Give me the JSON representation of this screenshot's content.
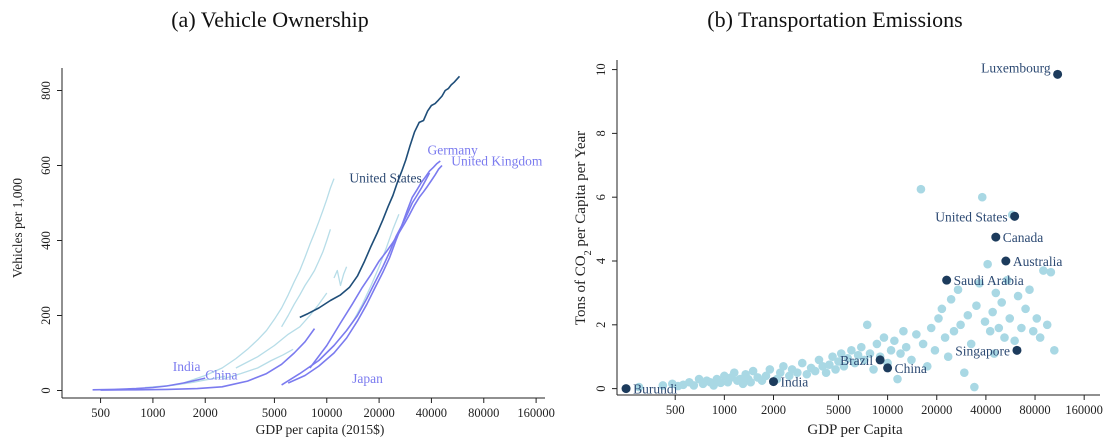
{
  "colors": {
    "us": "#1f4e79",
    "highlight": "#7b7bef",
    "other": "#b7dde8",
    "point": "#a9d8e4",
    "marked": "#1c3b5c",
    "label_blue": "#2d4a73",
    "label_purple": "#7b7bef"
  },
  "chart_data": [
    {
      "type": "line",
      "title": "(a) Vehicle Ownership",
      "xlabel": "GDP per capita (2015$)",
      "ylabel": "Vehicles per 1,000",
      "xscale": "log",
      "xlim": [
        300,
        180000
      ],
      "ylim": [
        -20,
        860
      ],
      "xticks": [
        500,
        1000,
        2000,
        5000,
        10000,
        20000,
        40000,
        80000,
        160000
      ],
      "xticklabels": [
        "500",
        "1000",
        "2000",
        "5000",
        "10000",
        "20000",
        "40000",
        "80000",
        "160000"
      ],
      "yticks": [
        0,
        200,
        400,
        600,
        800
      ],
      "yticklabels": [
        "0",
        "200",
        "400",
        "600",
        "800"
      ],
      "grid": false,
      "series": [
        {
          "name": "United States",
          "role": "us",
          "x": [
            7000,
            7800,
            9000,
            10500,
            12000,
            13500,
            15000,
            16500,
            18000,
            19500,
            21000,
            22500,
            24000,
            25500,
            27000,
            28500,
            30000,
            32000,
            34000,
            36000,
            38000,
            40000,
            42000,
            44000,
            46000,
            48000,
            50000,
            52000,
            54000,
            56000,
            58000
          ],
          "y": [
            195,
            205,
            220,
            240,
            255,
            275,
            305,
            345,
            385,
            420,
            455,
            490,
            520,
            555,
            585,
            615,
            650,
            690,
            715,
            720,
            745,
            760,
            765,
            775,
            785,
            800,
            805,
            815,
            822,
            830,
            838
          ]
        },
        {
          "name": "Germany",
          "role": "highlight",
          "x": [
            6000,
            7500,
            9000,
            11000,
            13000,
            15000,
            17000,
            19000,
            21000,
            23000,
            25000,
            27000,
            29000,
            31000,
            33000,
            35000,
            37000,
            39000,
            41000,
            43000,
            45000
          ],
          "y": [
            20,
            40,
            65,
            100,
            140,
            185,
            230,
            275,
            315,
            355,
            400,
            440,
            480,
            515,
            535,
            555,
            570,
            585,
            595,
            605,
            612
          ]
        },
        {
          "name": "United Kingdom",
          "role": "highlight",
          "x": [
            8000,
            10000,
            12000,
            14000,
            16000,
            18000,
            20000,
            22000,
            24000,
            26000,
            28000,
            30000,
            32000,
            34000,
            36000,
            38000,
            40000,
            42000,
            44000,
            46000
          ],
          "y": [
            60,
            120,
            180,
            230,
            275,
            310,
            345,
            370,
            395,
            420,
            445,
            470,
            495,
            515,
            530,
            545,
            560,
            575,
            590,
            600
          ]
        },
        {
          "name": "Japan",
          "role": "highlight",
          "x": [
            5500,
            7000,
            9000,
            11000,
            13000,
            15000,
            17000,
            19000,
            21000,
            23000,
            25000,
            27000,
            29000,
            31000,
            33000,
            35000,
            37000,
            39000
          ],
          "y": [
            15,
            45,
            80,
            120,
            160,
            200,
            245,
            290,
            330,
            370,
            410,
            440,
            470,
            500,
            520,
            540,
            560,
            580
          ]
        },
        {
          "name": "India",
          "role": "highlight",
          "x": [
            450,
            600,
            800,
            1000,
            1200,
            1500,
            1800,
            2000
          ],
          "y": [
            2,
            3,
            5,
            8,
            12,
            20,
            28,
            33
          ]
        },
        {
          "name": "China",
          "role": "highlight",
          "x": [
            500,
            800,
            1200,
            1800,
            2500,
            3500,
            4500,
            5500,
            6500,
            7500,
            8500
          ],
          "y": [
            1,
            2,
            3,
            5,
            10,
            25,
            45,
            70,
            100,
            130,
            165
          ]
        },
        {
          "name": "",
          "role": "other",
          "x": [
            1500,
            2000,
            2500,
            3000,
            3500,
            4000,
            4500,
            5000,
            5500,
            6000,
            6500,
            7000,
            7500,
            8000,
            8500,
            9000,
            9500,
            10000,
            10500,
            11000
          ],
          "y": [
            20,
            40,
            60,
            85,
            110,
            135,
            160,
            190,
            220,
            255,
            290,
            320,
            355,
            390,
            420,
            450,
            480,
            510,
            540,
            565
          ]
        },
        {
          "name": "",
          "role": "other",
          "x": [
            5500,
            6000,
            6500,
            7000,
            7500,
            8000,
            8500,
            9000,
            9500,
            10000,
            10500
          ],
          "y": [
            170,
            200,
            230,
            255,
            280,
            300,
            320,
            345,
            370,
            400,
            430
          ]
        },
        {
          "name": "",
          "role": "other",
          "x": [
            3000,
            4000,
            5000,
            6000,
            7000,
            8000,
            9000,
            10000
          ],
          "y": [
            60,
            90,
            120,
            150,
            170,
            200,
            230,
            260
          ]
        },
        {
          "name": "",
          "role": "other",
          "x": [
            11000,
            11500,
            12000,
            12500,
            13000
          ],
          "y": [
            300,
            320,
            280,
            310,
            330
          ]
        },
        {
          "name": "",
          "role": "other",
          "x": [
            14000,
            16000,
            18000,
            20000,
            22000,
            24000,
            26000
          ],
          "y": [
            180,
            230,
            280,
            330,
            380,
            430,
            470
          ]
        },
        {
          "name": "",
          "role": "other",
          "x": [
            2500,
            3200,
            4000,
            4800,
            5600,
            6400
          ],
          "y": [
            30,
            45,
            60,
            80,
            95,
            110
          ]
        },
        {
          "name": "",
          "role": "other",
          "x": [
            900,
            1300,
            1700,
            2100,
            2600
          ],
          "y": [
            8,
            14,
            22,
            30,
            38
          ]
        }
      ],
      "annotations": [
        {
          "text": "United States",
          "x": 13500,
          "y": 555,
          "role": "us"
        },
        {
          "text": "Germany",
          "x": 38000,
          "y": 630,
          "role": "highlight"
        },
        {
          "text": "United Kingdom",
          "x": 52000,
          "y": 600,
          "role": "highlight"
        },
        {
          "text": "India",
          "x": 1300,
          "y": 52,
          "role": "highlight"
        },
        {
          "text": "China",
          "x": 2000,
          "y": 30,
          "role": "highlight"
        },
        {
          "text": "Japan",
          "x": 14000,
          "y": 20,
          "role": "highlight"
        }
      ]
    },
    {
      "type": "scatter",
      "title": "(b) Transportation Emissions",
      "xlabel": "GDP per Capita",
      "ylabel_parts": [
        "Tons of CO",
        "2",
        " per Capita per Year"
      ],
      "xscale": "log",
      "xlim": [
        220,
        200000
      ],
      "ylim": [
        -0.2,
        10.3
      ],
      "xticks": [
        500,
        1000,
        2000,
        5000,
        10000,
        20000,
        40000,
        80000,
        160000
      ],
      "xticklabels": [
        "500",
        "1000",
        "2000",
        "5000",
        "10000",
        "20000",
        "40000",
        "80000",
        "160000"
      ],
      "yticks": [
        0,
        2,
        4,
        6,
        8,
        10
      ],
      "yticklabels": [
        "0",
        "2",
        "4",
        "6",
        "8",
        "10"
      ],
      "grid": false,
      "points": [
        [
          300,
          0.05
        ],
        [
          420,
          0.1
        ],
        [
          480,
          0.15
        ],
        [
          520,
          0.08
        ],
        [
          560,
          0.12
        ],
        [
          610,
          0.2
        ],
        [
          650,
          0.1
        ],
        [
          700,
          0.3
        ],
        [
          740,
          0.15
        ],
        [
          780,
          0.25
        ],
        [
          820,
          0.2
        ],
        [
          860,
          0.1
        ],
        [
          900,
          0.3
        ],
        [
          950,
          0.18
        ],
        [
          1000,
          0.4
        ],
        [
          1050,
          0.2
        ],
        [
          1100,
          0.35
        ],
        [
          1150,
          0.5
        ],
        [
          1200,
          0.25
        ],
        [
          1250,
          0.3
        ],
        [
          1300,
          0.15
        ],
        [
          1350,
          0.45
        ],
        [
          1400,
          0.3
        ],
        [
          1450,
          0.2
        ],
        [
          1500,
          0.55
        ],
        [
          1600,
          0.35
        ],
        [
          1700,
          0.25
        ],
        [
          1800,
          0.4
        ],
        [
          1900,
          0.6
        ],
        [
          2100,
          0.3
        ],
        [
          2200,
          0.5
        ],
        [
          2300,
          0.7
        ],
        [
          2500,
          0.4
        ],
        [
          2600,
          0.6
        ],
        [
          2800,
          0.5
        ],
        [
          3000,
          0.8
        ],
        [
          3200,
          0.45
        ],
        [
          3400,
          0.65
        ],
        [
          3600,
          0.55
        ],
        [
          3800,
          0.9
        ],
        [
          4000,
          0.7
        ],
        [
          4200,
          0.5
        ],
        [
          4400,
          0.75
        ],
        [
          4600,
          1.0
        ],
        [
          4800,
          0.6
        ],
        [
          5000,
          0.85
        ],
        [
          5200,
          1.1
        ],
        [
          5400,
          0.7
        ],
        [
          5700,
          0.95
        ],
        [
          6000,
          1.2
        ],
        [
          6300,
          0.8
        ],
        [
          6600,
          1.05
        ],
        [
          6900,
          1.3
        ],
        [
          7200,
          0.9
        ],
        [
          7500,
          2.0
        ],
        [
          7800,
          1.1
        ],
        [
          8200,
          0.6
        ],
        [
          8600,
          1.4
        ],
        [
          9000,
          1.0
        ],
        [
          9500,
          1.6
        ],
        [
          10000,
          0.8
        ],
        [
          10500,
          1.2
        ],
        [
          11000,
          1.5
        ],
        [
          11500,
          0.3
        ],
        [
          12000,
          1.1
        ],
        [
          12500,
          1.8
        ],
        [
          13000,
          1.3
        ],
        [
          14000,
          0.9
        ],
        [
          15000,
          1.7
        ],
        [
          16000,
          6.25
        ],
        [
          16500,
          1.4
        ],
        [
          17500,
          0.7
        ],
        [
          18500,
          1.9
        ],
        [
          19500,
          1.2
        ],
        [
          20500,
          2.2
        ],
        [
          21500,
          2.5
        ],
        [
          22500,
          1.6
        ],
        [
          23500,
          1.0
        ],
        [
          24500,
          2.8
        ],
        [
          25500,
          1.8
        ],
        [
          27000,
          3.1
        ],
        [
          28000,
          2.0
        ],
        [
          29500,
          0.5
        ],
        [
          31000,
          2.3
        ],
        [
          32500,
          1.4
        ],
        [
          34000,
          0.05
        ],
        [
          35000,
          2.6
        ],
        [
          36500,
          3.3
        ],
        [
          38000,
          6.0
        ],
        [
          39500,
          2.1
        ],
        [
          41000,
          3.9
        ],
        [
          42500,
          1.8
        ],
        [
          44000,
          2.4
        ],
        [
          46000,
          3.0
        ],
        [
          48000,
          1.9
        ],
        [
          50000,
          2.7
        ],
        [
          52000,
          1.6
        ],
        [
          54000,
          3.4
        ],
        [
          56000,
          2.2
        ],
        [
          58000,
          5.45
        ],
        [
          60000,
          1.5
        ],
        [
          63000,
          2.9
        ],
        [
          66000,
          1.9
        ],
        [
          70000,
          2.5
        ],
        [
          74000,
          3.1
        ],
        [
          78000,
          1.8
        ],
        [
          82000,
          2.2
        ],
        [
          86000,
          1.6
        ],
        [
          90000,
          3.7
        ],
        [
          95000,
          2.0
        ],
        [
          100000,
          3.65
        ],
        [
          105000,
          1.2
        ],
        [
          45000,
          1.1
        ]
      ],
      "marked": [
        {
          "name": "Luxembourg",
          "x": 110000,
          "y": 9.85,
          "label_pos": "left"
        },
        {
          "name": "United States",
          "x": 60000,
          "y": 5.4,
          "label_pos": "left"
        },
        {
          "name": "Canada",
          "x": 46000,
          "y": 4.75,
          "label_pos": "right"
        },
        {
          "name": "Australia",
          "x": 53000,
          "y": 4.0,
          "label_pos": "right"
        },
        {
          "name": "Saudi Arabia",
          "x": 23000,
          "y": 3.4,
          "label_pos": "right"
        },
        {
          "name": "Singapore",
          "x": 62000,
          "y": 1.2,
          "label_pos": "left"
        },
        {
          "name": "Brazil",
          "x": 9000,
          "y": 0.9,
          "label_pos": "left"
        },
        {
          "name": "China",
          "x": 10000,
          "y": 0.65,
          "label_pos": "right"
        },
        {
          "name": "India",
          "x": 2000,
          "y": 0.22,
          "label_pos": "right"
        },
        {
          "name": "Burundi",
          "x": 250,
          "y": 0.0,
          "label_pos": "right"
        }
      ]
    }
  ]
}
